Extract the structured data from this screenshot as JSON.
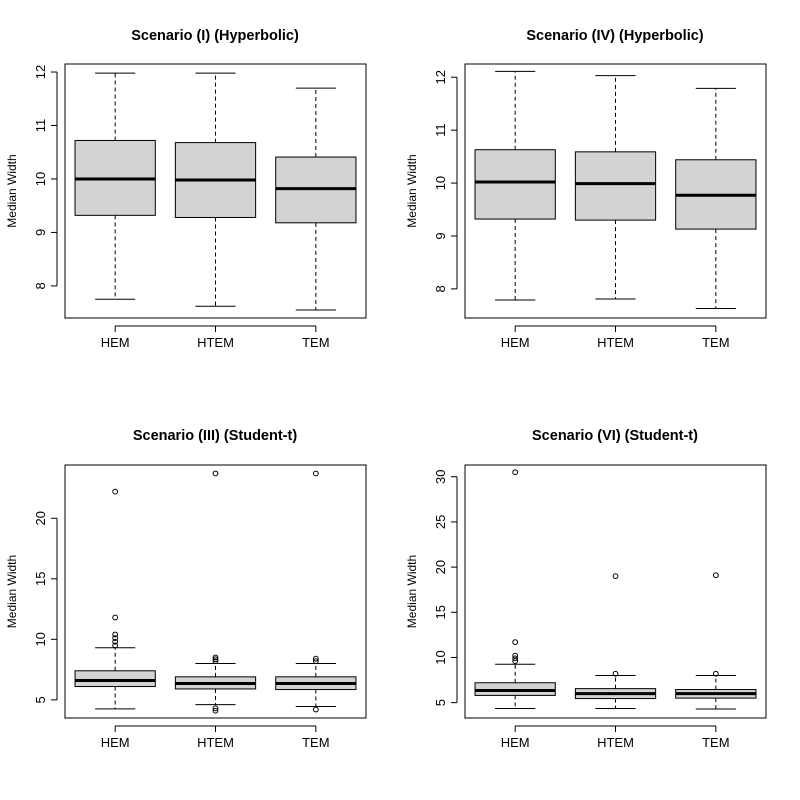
{
  "colors": {
    "box_fill": "#d3d3d3",
    "stroke": "#000000",
    "background": "#ffffff"
  },
  "chart_data": [
    {
      "type": "boxplot",
      "title": "Scenario (I) (Hyperbolic)",
      "ylabel": "Median Width",
      "xlabel": "",
      "ylim": [
        7.4,
        12.15
      ],
      "yticks": [
        8,
        9,
        10,
        11,
        12
      ],
      "categories": [
        "HEM",
        "HTEM",
        "TEM"
      ],
      "boxes": [
        {
          "name": "HEM",
          "whisker_low": 7.75,
          "q1": 9.32,
          "median": 10.0,
          "q3": 10.72,
          "whisker_high": 11.98,
          "outliers": []
        },
        {
          "name": "HTEM",
          "whisker_low": 7.62,
          "q1": 9.28,
          "median": 9.98,
          "q3": 10.68,
          "whisker_high": 11.98,
          "outliers": []
        },
        {
          "name": "TEM",
          "whisker_low": 7.55,
          "q1": 9.18,
          "median": 9.82,
          "q3": 10.41,
          "whisker_high": 11.7,
          "outliers": []
        }
      ]
    },
    {
      "type": "boxplot",
      "title": "Scenario (IV) (Hyperbolic)",
      "ylabel": "Median Width",
      "xlabel": "",
      "ylim": [
        7.45,
        12.25
      ],
      "yticks": [
        8,
        9,
        10,
        11,
        12
      ],
      "categories": [
        "HEM",
        "HTEM",
        "TEM"
      ],
      "boxes": [
        {
          "name": "HEM",
          "whisker_low": 7.79,
          "q1": 9.32,
          "median": 10.02,
          "q3": 10.63,
          "whisker_high": 12.11,
          "outliers": []
        },
        {
          "name": "HTEM",
          "whisker_low": 7.81,
          "q1": 9.3,
          "median": 9.99,
          "q3": 10.59,
          "whisker_high": 12.03,
          "outliers": []
        },
        {
          "name": "TEM",
          "whisker_low": 7.63,
          "q1": 9.13,
          "median": 9.77,
          "q3": 10.44,
          "whisker_high": 11.79,
          "outliers": []
        }
      ]
    },
    {
      "type": "boxplot",
      "title": "Scenario (III) (Student-t)",
      "ylabel": "Median Width",
      "xlabel": "",
      "ylim": [
        3.5,
        24.4
      ],
      "yticks": [
        5,
        10,
        15,
        20
      ],
      "categories": [
        "HEM",
        "HTEM",
        "TEM"
      ],
      "boxes": [
        {
          "name": "HEM",
          "whisker_low": 4.25,
          "q1": 6.1,
          "median": 6.6,
          "q3": 7.4,
          "whisker_high": 9.3,
          "outliers": [
            9.5,
            9.8,
            10.1,
            10.4,
            11.8,
            22.2
          ]
        },
        {
          "name": "HTEM",
          "whisker_low": 4.6,
          "q1": 5.9,
          "median": 6.35,
          "q3": 6.9,
          "whisker_high": 8.0,
          "outliers": [
            4.1,
            4.3,
            8.2,
            8.35,
            8.5,
            23.7
          ]
        },
        {
          "name": "TEM",
          "whisker_low": 4.45,
          "q1": 5.85,
          "median": 6.35,
          "q3": 6.9,
          "whisker_high": 8.0,
          "outliers": [
            4.2,
            8.2,
            8.4,
            23.7
          ]
        }
      ]
    },
    {
      "type": "boxplot",
      "title": "Scenario (VI) (Student-t)",
      "ylabel": "Median Width",
      "xlabel": "",
      "ylim": [
        3.3,
        31.3
      ],
      "yticks": [
        5,
        10,
        15,
        20,
        25,
        30
      ],
      "categories": [
        "HEM",
        "HTEM",
        "TEM"
      ],
      "boxes": [
        {
          "name": "HEM",
          "whisker_low": 4.35,
          "q1": 5.8,
          "median": 6.35,
          "q3": 7.2,
          "whisker_high": 9.25,
          "outliers": [
            9.6,
            9.9,
            10.2,
            11.7,
            30.5
          ]
        },
        {
          "name": "HTEM",
          "whisker_low": 4.35,
          "q1": 5.45,
          "median": 6.0,
          "q3": 6.55,
          "whisker_high": 8.0,
          "outliers": [
            8.2,
            19.0
          ]
        },
        {
          "name": "TEM",
          "whisker_low": 4.3,
          "q1": 5.5,
          "median": 6.0,
          "q3": 6.45,
          "whisker_high": 8.0,
          "outliers": [
            8.2,
            19.1
          ]
        }
      ]
    }
  ]
}
